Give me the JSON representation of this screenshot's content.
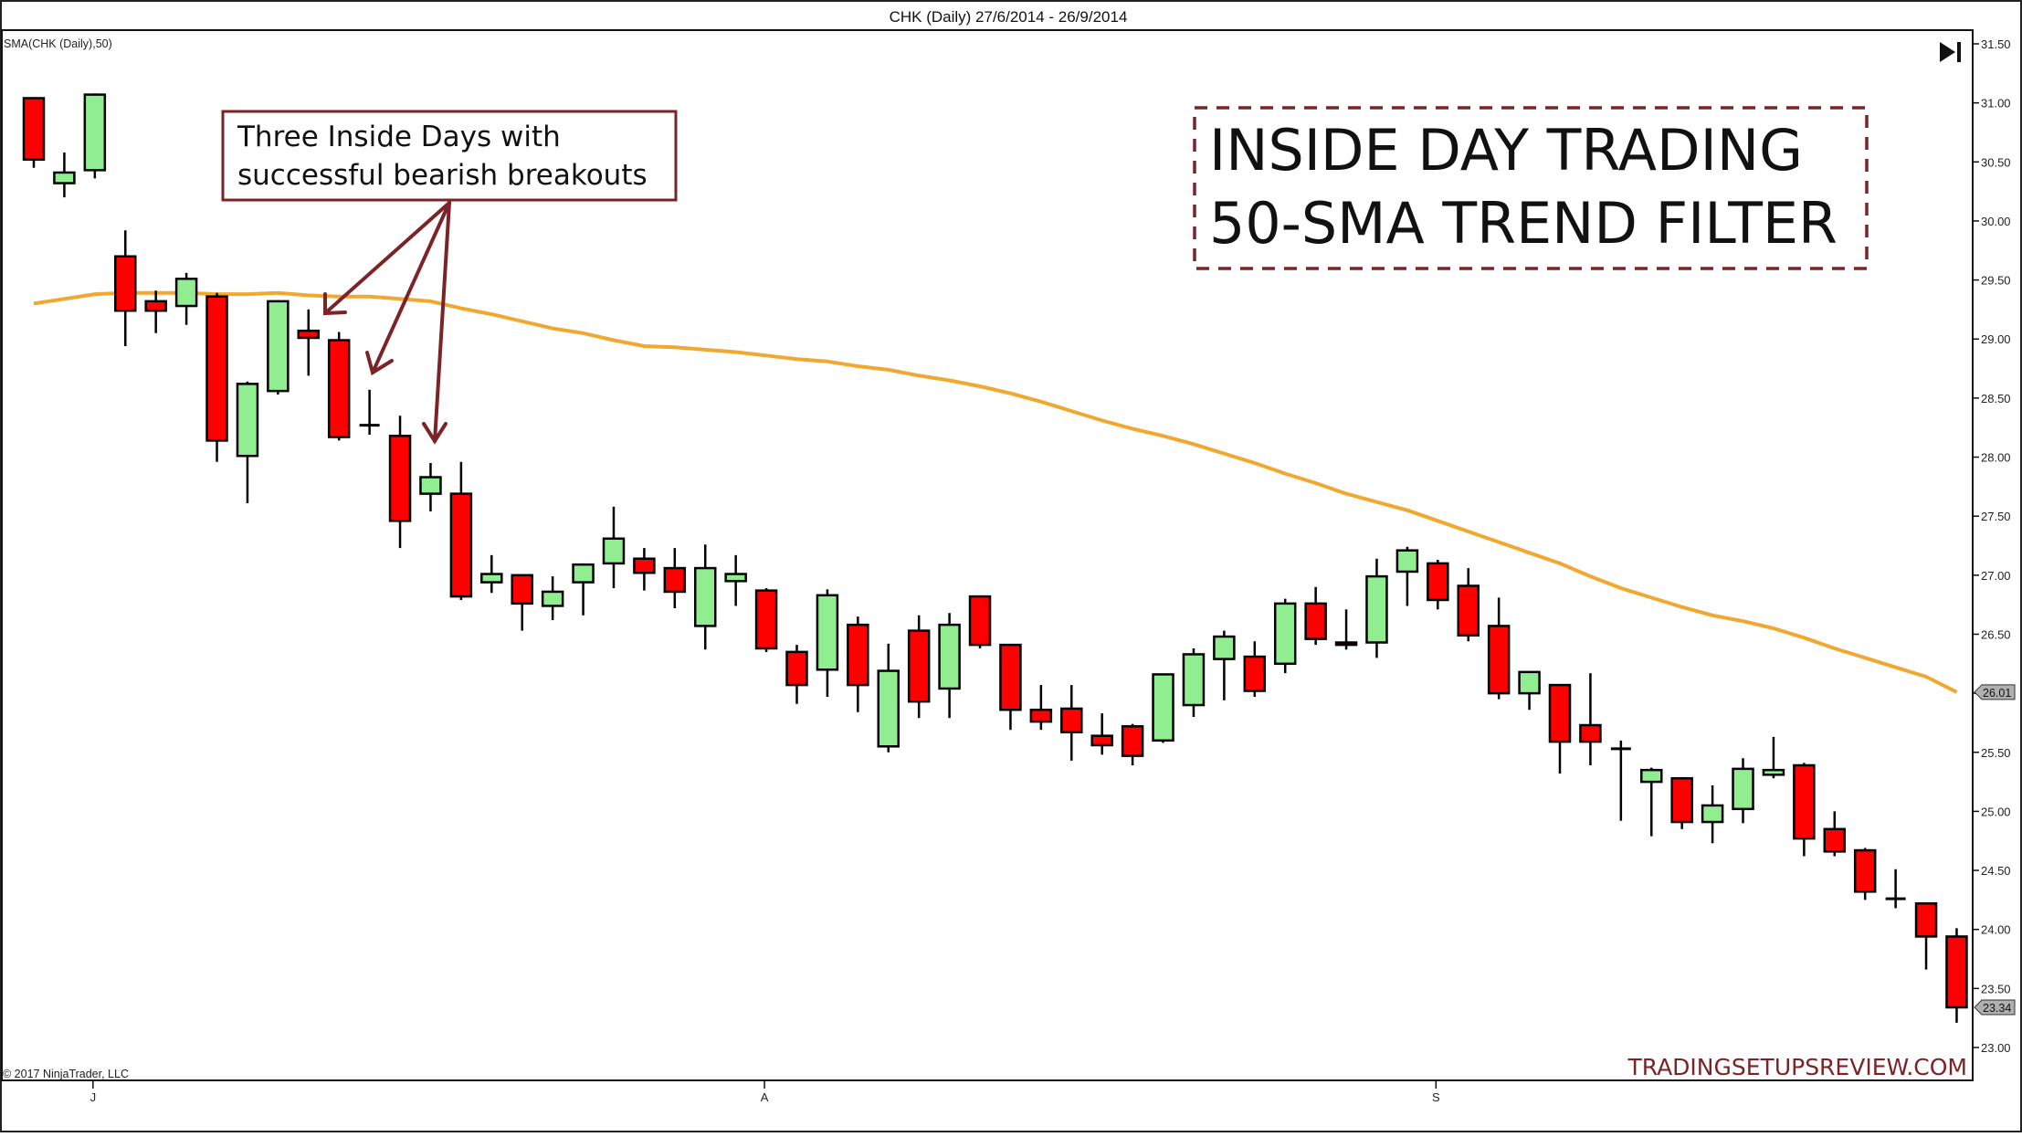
{
  "window": {
    "title": "CHK (Daily)  27/6/2014 - 26/9/2014",
    "indicator_label": "SMA(CHK (Daily),50)",
    "copyright": "© 2017 NinjaTrader, LLC",
    "watermark": "TRADINGSETUPSREVIEW.COM",
    "scroll_end_icon": "skip-to-end-icon"
  },
  "annotations": {
    "callout_lines": [
      "Three Inside Days with",
      "successful bearish breakouts"
    ],
    "headline_lines": [
      "INSIDE DAY TRADING",
      "50-SMA TREND FILTER"
    ]
  },
  "colors": {
    "up_candle": "#90EE90",
    "down_candle": "#FF0000",
    "candle_outline": "#000000",
    "sma_line": "#F0A830",
    "annotation": "#7B2326",
    "watermark": "#7B2326",
    "price_marker_bg": "#B0B0B0"
  },
  "chart_data": {
    "type": "candlestick",
    "title": "CHK (Daily)  27/6/2014 - 26/9/2014",
    "symbol": "CHK",
    "interval": "Daily",
    "date_range": "27/6/2014 - 26/9/2014",
    "xlabel": "",
    "ylabel": "",
    "ylim": [
      22.9,
      31.55
    ],
    "grid": false,
    "y_ticks": [
      "31.50",
      "31.00",
      "30.50",
      "30.00",
      "29.50",
      "29.00",
      "28.50",
      "28.00",
      "27.50",
      "27.00",
      "26.50",
      "26.00",
      "25.50",
      "25.00",
      "24.50",
      "24.00",
      "23.50",
      "23.00"
    ],
    "x_ticks": [
      {
        "label": "J",
        "index": 2
      },
      {
        "label": "A",
        "index": 24
      },
      {
        "label": "S",
        "index": 46
      }
    ],
    "last_price_marker": "23.34",
    "sma_marker": "26.01",
    "legend": [
      "SMA(CHK (Daily),50)"
    ],
    "candles": [
      {
        "o": 31.04,
        "h": 31.04,
        "l": 30.45,
        "c": 30.52
      },
      {
        "o": 30.32,
        "h": 30.58,
        "l": 30.2,
        "c": 30.41
      },
      {
        "o": 30.43,
        "h": 31.08,
        "l": 30.36,
        "c": 31.07
      },
      {
        "o": 29.7,
        "h": 29.92,
        "l": 28.94,
        "c": 29.24
      },
      {
        "o": 29.32,
        "h": 29.41,
        "l": 29.05,
        "c": 29.24
      },
      {
        "o": 29.28,
        "h": 29.56,
        "l": 29.12,
        "c": 29.51
      },
      {
        "o": 29.36,
        "h": 29.39,
        "l": 27.96,
        "c": 28.14
      },
      {
        "o": 28.01,
        "h": 28.64,
        "l": 27.61,
        "c": 28.62
      },
      {
        "o": 28.56,
        "h": 29.33,
        "l": 28.53,
        "c": 29.32
      },
      {
        "o": 29.07,
        "h": 29.25,
        "l": 28.69,
        "c": 29.01
      },
      {
        "o": 28.99,
        "h": 29.06,
        "l": 28.14,
        "c": 28.17
      },
      {
        "o": 28.27,
        "h": 28.57,
        "l": 28.19,
        "c": 28.26
      },
      {
        "o": 28.18,
        "h": 28.35,
        "l": 27.23,
        "c": 27.46
      },
      {
        "o": 27.69,
        "h": 27.95,
        "l": 27.54,
        "c": 27.83
      },
      {
        "o": 27.69,
        "h": 27.96,
        "l": 26.79,
        "c": 26.82
      },
      {
        "o": 26.94,
        "h": 27.17,
        "l": 26.85,
        "c": 27.01
      },
      {
        "o": 27.0,
        "h": 27.0,
        "l": 26.53,
        "c": 26.76
      },
      {
        "o": 26.74,
        "h": 26.99,
        "l": 26.62,
        "c": 26.86
      },
      {
        "o": 26.94,
        "h": 27.1,
        "l": 26.66,
        "c": 27.09
      },
      {
        "o": 27.1,
        "h": 27.58,
        "l": 26.89,
        "c": 27.31
      },
      {
        "o": 27.14,
        "h": 27.23,
        "l": 26.87,
        "c": 27.02
      },
      {
        "o": 27.06,
        "h": 27.23,
        "l": 26.72,
        "c": 26.86
      },
      {
        "o": 26.57,
        "h": 27.26,
        "l": 26.37,
        "c": 27.06
      },
      {
        "o": 26.95,
        "h": 27.17,
        "l": 26.74,
        "c": 27.01
      },
      {
        "o": 26.87,
        "h": 26.89,
        "l": 26.35,
        "c": 26.38
      },
      {
        "o": 26.35,
        "h": 26.41,
        "l": 25.91,
        "c": 26.07
      },
      {
        "o": 26.2,
        "h": 26.88,
        "l": 25.97,
        "c": 26.83
      },
      {
        "o": 26.58,
        "h": 26.65,
        "l": 25.84,
        "c": 26.07
      },
      {
        "o": 25.55,
        "h": 26.42,
        "l": 25.5,
        "c": 26.19
      },
      {
        "o": 26.53,
        "h": 26.66,
        "l": 25.79,
        "c": 25.93
      },
      {
        "o": 26.04,
        "h": 26.68,
        "l": 25.79,
        "c": 26.58
      },
      {
        "o": 26.82,
        "h": 26.82,
        "l": 26.38,
        "c": 26.41
      },
      {
        "o": 26.41,
        "h": 26.41,
        "l": 25.69,
        "c": 25.86
      },
      {
        "o": 25.86,
        "h": 26.07,
        "l": 25.69,
        "c": 25.76
      },
      {
        "o": 25.87,
        "h": 26.07,
        "l": 25.43,
        "c": 25.67
      },
      {
        "o": 25.64,
        "h": 25.83,
        "l": 25.48,
        "c": 25.56
      },
      {
        "o": 25.72,
        "h": 25.74,
        "l": 25.39,
        "c": 25.47
      },
      {
        "o": 25.6,
        "h": 26.16,
        "l": 25.58,
        "c": 26.16
      },
      {
        "o": 25.9,
        "h": 26.38,
        "l": 25.8,
        "c": 26.33
      },
      {
        "o": 26.29,
        "h": 26.53,
        "l": 25.94,
        "c": 26.48
      },
      {
        "o": 26.31,
        "h": 26.44,
        "l": 25.97,
        "c": 26.02
      },
      {
        "o": 26.25,
        "h": 26.8,
        "l": 26.17,
        "c": 26.76
      },
      {
        "o": 26.76,
        "h": 26.9,
        "l": 26.41,
        "c": 26.46
      },
      {
        "o": 26.43,
        "h": 26.71,
        "l": 26.37,
        "c": 26.41
      },
      {
        "o": 26.43,
        "h": 27.14,
        "l": 26.3,
        "c": 26.99
      },
      {
        "o": 27.03,
        "h": 27.24,
        "l": 26.74,
        "c": 27.21
      },
      {
        "o": 27.1,
        "h": 27.13,
        "l": 26.71,
        "c": 26.79
      },
      {
        "o": 26.91,
        "h": 27.06,
        "l": 26.44,
        "c": 26.49
      },
      {
        "o": 26.57,
        "h": 26.81,
        "l": 25.95,
        "c": 26.0
      },
      {
        "o": 26.0,
        "h": 26.18,
        "l": 25.86,
        "c": 26.18
      },
      {
        "o": 26.07,
        "h": 26.07,
        "l": 25.32,
        "c": 25.59
      },
      {
        "o": 25.73,
        "h": 26.17,
        "l": 25.39,
        "c": 25.59
      },
      {
        "o": 25.53,
        "h": 25.6,
        "l": 24.92,
        "c": 25.52
      },
      {
        "o": 25.25,
        "h": 25.37,
        "l": 24.79,
        "c": 25.35
      },
      {
        "o": 25.28,
        "h": 25.29,
        "l": 24.85,
        "c": 24.91
      },
      {
        "o": 24.91,
        "h": 25.22,
        "l": 24.73,
        "c": 25.05
      },
      {
        "o": 25.02,
        "h": 25.45,
        "l": 24.9,
        "c": 25.36
      },
      {
        "o": 25.31,
        "h": 25.63,
        "l": 25.28,
        "c": 25.35
      },
      {
        "o": 25.39,
        "h": 25.41,
        "l": 24.62,
        "c": 24.77
      },
      {
        "o": 24.85,
        "h": 25.0,
        "l": 24.62,
        "c": 24.66
      },
      {
        "o": 24.67,
        "h": 24.69,
        "l": 24.25,
        "c": 24.32
      },
      {
        "o": 24.26,
        "h": 24.51,
        "l": 24.18,
        "c": 24.25
      },
      {
        "o": 24.22,
        "h": 24.23,
        "l": 23.66,
        "c": 23.94
      },
      {
        "o": 23.94,
        "h": 24.01,
        "l": 23.21,
        "c": 23.34
      }
    ],
    "sma_50": {
      "name": "SMA(CHK (Daily),50)",
      "points": [
        [
          0,
          29.3
        ],
        [
          1,
          29.34
        ],
        [
          2,
          29.38
        ],
        [
          3,
          29.39
        ],
        [
          4,
          29.39
        ],
        [
          5,
          29.39
        ],
        [
          6,
          29.38
        ],
        [
          7,
          29.38
        ],
        [
          8,
          29.39
        ],
        [
          9,
          29.37
        ],
        [
          10,
          29.36
        ],
        [
          11,
          29.36
        ],
        [
          12,
          29.34
        ],
        [
          13,
          29.32
        ],
        [
          14,
          29.26
        ],
        [
          15,
          29.21
        ],
        [
          16,
          29.15
        ],
        [
          17,
          29.09
        ],
        [
          18,
          29.05
        ],
        [
          19,
          28.99
        ],
        [
          20,
          28.94
        ],
        [
          21,
          28.93
        ],
        [
          22,
          28.91
        ],
        [
          23,
          28.89
        ],
        [
          24,
          28.86
        ],
        [
          25,
          28.83
        ],
        [
          26,
          28.81
        ],
        [
          27,
          28.77
        ],
        [
          28,
          28.74
        ],
        [
          29,
          28.69
        ],
        [
          30,
          28.65
        ],
        [
          31,
          28.6
        ],
        [
          32,
          28.54
        ],
        [
          33,
          28.47
        ],
        [
          34,
          28.39
        ],
        [
          35,
          28.31
        ],
        [
          36,
          28.24
        ],
        [
          37,
          28.18
        ],
        [
          38,
          28.11
        ],
        [
          39,
          28.03
        ],
        [
          40,
          27.95
        ],
        [
          41,
          27.86
        ],
        [
          42,
          27.78
        ],
        [
          43,
          27.69
        ],
        [
          44,
          27.62
        ],
        [
          45,
          27.55
        ],
        [
          46,
          27.46
        ],
        [
          47,
          27.37
        ],
        [
          48,
          27.28
        ],
        [
          49,
          27.19
        ],
        [
          50,
          27.1
        ],
        [
          51,
          26.99
        ],
        [
          52,
          26.89
        ],
        [
          53,
          26.81
        ],
        [
          54,
          26.73
        ],
        [
          55,
          26.66
        ],
        [
          56,
          26.61
        ],
        [
          57,
          26.55
        ],
        [
          58,
          26.47
        ],
        [
          59,
          26.38
        ],
        [
          60,
          26.3
        ],
        [
          61,
          26.22
        ],
        [
          62,
          26.14
        ],
        [
          63,
          26.01
        ]
      ]
    }
  }
}
